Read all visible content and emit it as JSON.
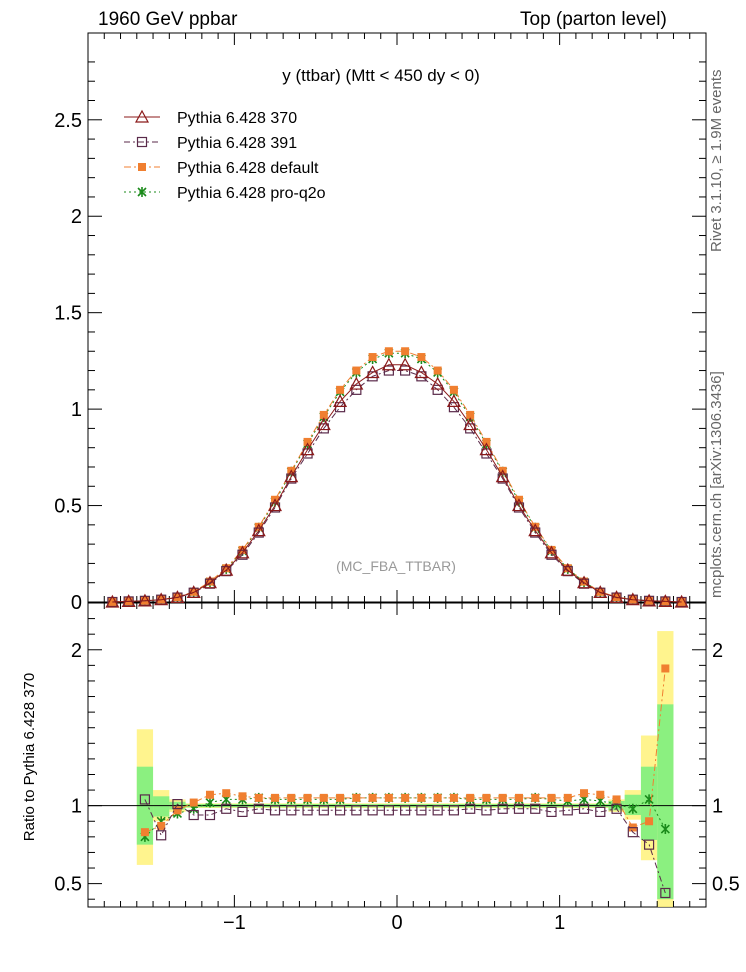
{
  "header": {
    "left": "1960 GeV ppbar",
    "right": "Top (parton level)"
  },
  "side": {
    "rivet": "Rivet 3.1.10, ≥ 1.9M events",
    "mcplots": "mcplots.cern.ch [arXiv:1306.3436]"
  },
  "chart_data": {
    "type": "line",
    "title": "y (ttbar) (Mtt < 450 dy < 0)",
    "watermark": "(MC_FBA_TTBAR)",
    "xlim": [
      -1.9,
      1.9
    ],
    "ylim": [
      0,
      2.95
    ],
    "xticks": [
      -1,
      0,
      1
    ],
    "xtick_labels": [
      "−1",
      "0",
      "1"
    ],
    "yticks": [
      0,
      0.5,
      1,
      1.5,
      2,
      2.5
    ],
    "ytick_labels": [
      "0",
      "0.5",
      "1",
      "1.5",
      "2",
      "2.5"
    ],
    "ratio_ylabel": "Ratio to Pythia 6.428 370",
    "ratio_ylim": [
      0.35,
      2.3
    ],
    "ratio_yticks": [
      0.5,
      1,
      2
    ],
    "ratio_ytick_labels": [
      "0.5",
      "1",
      "2"
    ],
    "x": [
      -1.75,
      -1.65,
      -1.55,
      -1.45,
      -1.35,
      -1.25,
      -1.15,
      -1.05,
      -0.95,
      -0.85,
      -0.75,
      -0.65,
      -0.55,
      -0.45,
      -0.35,
      -0.25,
      -0.15,
      -0.05,
      0.05,
      0.15,
      0.25,
      0.35,
      0.45,
      0.55,
      0.65,
      0.75,
      0.85,
      0.95,
      1.05,
      1.15,
      1.25,
      1.35,
      1.45,
      1.55,
      1.65,
      1.75
    ],
    "series": [
      {
        "name": "Pythia 6.428 370",
        "color": "#8b1a1a",
        "marker": "triangle",
        "dash": "",
        "values": [
          0.0,
          0.003,
          0.006,
          0.012,
          0.024,
          0.05,
          0.1,
          0.165,
          0.255,
          0.37,
          0.5,
          0.65,
          0.79,
          0.92,
          1.04,
          1.13,
          1.19,
          1.23,
          1.23,
          1.19,
          1.13,
          1.04,
          0.92,
          0.79,
          0.65,
          0.5,
          0.37,
          0.255,
          0.165,
          0.1,
          0.05,
          0.024,
          0.012,
          0.006,
          0.003,
          0.0
        ],
        "ratio": [
          1.0,
          1.0,
          1.0,
          1.0,
          1.0,
          1.0,
          1.0,
          1.0,
          1.0,
          1.0,
          1.0,
          1.0,
          1.0,
          1.0,
          1.0,
          1.0,
          1.0,
          1.0,
          1.0,
          1.0,
          1.0,
          1.0,
          1.0,
          1.0,
          1.0,
          1.0,
          1.0,
          1.0,
          1.0,
          1.0,
          1.0,
          1.0,
          1.0,
          1.0,
          1.0,
          1.0
        ]
      },
      {
        "name": "Pythia 6.428 391",
        "color": "#5a2a4a",
        "marker": "square-open",
        "dash": "6,3,2,3",
        "values": [
          0.0,
          0.003,
          0.006,
          0.012,
          0.023,
          0.048,
          0.095,
          0.16,
          0.245,
          0.36,
          0.49,
          0.64,
          0.77,
          0.9,
          1.01,
          1.1,
          1.17,
          1.2,
          1.2,
          1.17,
          1.1,
          1.01,
          0.9,
          0.77,
          0.64,
          0.49,
          0.36,
          0.245,
          0.16,
          0.095,
          0.048,
          0.023,
          0.012,
          0.006,
          0.003,
          0.0
        ],
        "ratio": [
          null,
          null,
          1.04,
          0.81,
          1.01,
          0.94,
          0.94,
          0.98,
          0.96,
          0.98,
          0.97,
          0.97,
          0.97,
          0.97,
          0.97,
          0.97,
          0.97,
          0.97,
          0.97,
          0.97,
          0.97,
          0.97,
          0.98,
          0.97,
          0.98,
          0.98,
          0.98,
          0.96,
          0.97,
          0.98,
          0.96,
          0.98,
          0.83,
          0.75,
          0.44,
          null
        ]
      },
      {
        "name": "Pythia 6.428 default",
        "color": "#f07f30",
        "marker": "square-filled",
        "dash": "7,3,2,3",
        "values": [
          0.0,
          0.003,
          0.006,
          0.013,
          0.026,
          0.053,
          0.106,
          0.175,
          0.27,
          0.39,
          0.53,
          0.68,
          0.83,
          0.97,
          1.1,
          1.2,
          1.27,
          1.3,
          1.3,
          1.27,
          1.2,
          1.1,
          0.97,
          0.83,
          0.68,
          0.53,
          0.39,
          0.27,
          0.175,
          0.106,
          0.053,
          0.026,
          0.013,
          0.006,
          0.003,
          0.0
        ],
        "ratio": [
          null,
          null,
          0.83,
          0.87,
          0.97,
          1.02,
          1.07,
          1.08,
          1.06,
          1.05,
          1.05,
          1.05,
          1.05,
          1.05,
          1.05,
          1.05,
          1.05,
          1.05,
          1.05,
          1.05,
          1.05,
          1.05,
          1.05,
          1.05,
          1.05,
          1.05,
          1.05,
          1.05,
          1.05,
          1.08,
          1.07,
          1.04,
          0.86,
          0.9,
          1.88,
          null
        ]
      },
      {
        "name": "Pythia 6.428 pro-q2o",
        "color": "#1a8a1a",
        "marker": "star",
        "dash": "2,3",
        "values": [
          0.0,
          0.003,
          0.006,
          0.013,
          0.025,
          0.052,
          0.104,
          0.172,
          0.265,
          0.385,
          0.52,
          0.675,
          0.82,
          0.96,
          1.09,
          1.19,
          1.26,
          1.29,
          1.29,
          1.26,
          1.19,
          1.09,
          0.96,
          0.82,
          0.675,
          0.52,
          0.385,
          0.265,
          0.172,
          0.104,
          0.052,
          0.025,
          0.013,
          0.006,
          0.003,
          0.0
        ],
        "ratio": [
          null,
          null,
          0.8,
          0.9,
          0.95,
          0.98,
          1.02,
          1.04,
          1.04,
          1.05,
          1.04,
          1.04,
          1.04,
          1.04,
          1.04,
          1.05,
          1.05,
          1.05,
          1.05,
          1.05,
          1.05,
          1.05,
          1.04,
          1.04,
          1.04,
          1.04,
          1.05,
          1.04,
          1.03,
          1.04,
          1.03,
          1.01,
          0.98,
          1.04,
          0.85,
          null
        ]
      }
    ],
    "band_yellow": [
      [
        -1.6,
        -1.5,
        0.62,
        1.49
      ],
      [
        -1.5,
        -1.4,
        0.9,
        1.1
      ],
      [
        -1.4,
        -1.3,
        0.96,
        1.04
      ],
      [
        -1.3,
        1.3,
        0.985,
        1.015
      ],
      [
        1.3,
        1.4,
        0.96,
        1.04
      ],
      [
        1.4,
        1.5,
        0.91,
        1.1
      ],
      [
        1.5,
        1.6,
        0.65,
        1.45
      ],
      [
        1.6,
        1.7,
        0.35,
        2.12
      ]
    ],
    "band_green": [
      [
        -1.6,
        -1.5,
        0.75,
        1.25
      ],
      [
        -1.5,
        -1.4,
        0.93,
        1.06
      ],
      [
        -1.4,
        -1.3,
        0.975,
        1.025
      ],
      [
        -1.3,
        1.3,
        0.99,
        1.01
      ],
      [
        1.3,
        1.4,
        0.97,
        1.03
      ],
      [
        1.4,
        1.5,
        0.94,
        1.07
      ],
      [
        1.5,
        1.6,
        0.78,
        1.25
      ],
      [
        1.6,
        1.7,
        0.4,
        1.65
      ]
    ],
    "legend_position": "top-left"
  }
}
